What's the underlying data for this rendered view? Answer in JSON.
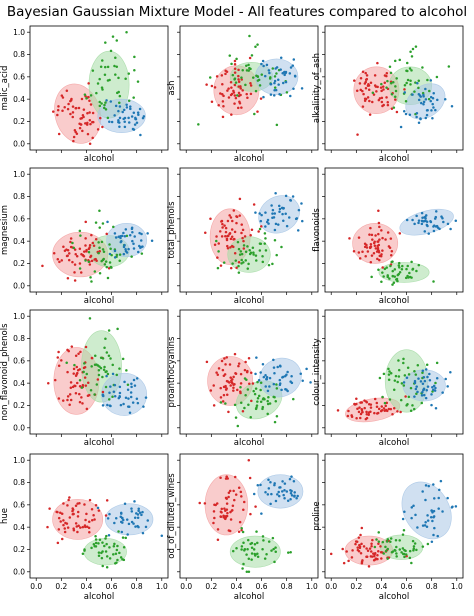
{
  "figure": {
    "title": "Bayesian Gaussian Mixture Model - All features compared to alcohol"
  },
  "colors": {
    "cluster_red": "#d62728",
    "cluster_green": "#2ca02c",
    "cluster_blue": "#1f77b4",
    "ellipse_red": "#f4a3a3",
    "ellipse_green": "#a6dca6",
    "ellipse_blue": "#a9c7e6"
  },
  "chart_data": [
    {
      "type": "scatter",
      "xlabel": "alcohol",
      "ylabel": "malic_acid",
      "xlim": [
        0,
        1
      ],
      "ylim": [
        0,
        1
      ],
      "xticks_labeled": false,
      "yticks_labeled": true,
      "ellipses": [
        {
          "cluster": "red",
          "cx": 0.33,
          "cy": 0.27,
          "rx": 0.18,
          "ry": 0.27,
          "angle": -15
        },
        {
          "cluster": "green",
          "cx": 0.58,
          "cy": 0.53,
          "rx": 0.16,
          "ry": 0.3,
          "angle": 0
        },
        {
          "cluster": "blue",
          "cx": 0.68,
          "cy": 0.25,
          "rx": 0.19,
          "ry": 0.15,
          "angle": 0
        }
      ],
      "clusters": {
        "red": {
          "n": 60,
          "mx": 0.34,
          "my": 0.27,
          "sx": 0.09,
          "sy": 0.13
        },
        "green": {
          "n": 45,
          "mx": 0.55,
          "my": 0.55,
          "sx": 0.1,
          "sy": 0.18
        },
        "blue": {
          "n": 40,
          "mx": 0.7,
          "my": 0.25,
          "sx": 0.09,
          "sy": 0.07
        }
      }
    },
    {
      "type": "scatter",
      "xlabel": "alcohol",
      "ylabel": "ash",
      "xlim": [
        0,
        1
      ],
      "ylim": [
        0,
        1
      ],
      "xticks_labeled": false,
      "yticks_labeled": false,
      "ellipses": [
        {
          "cluster": "red",
          "cx": 0.4,
          "cy": 0.48,
          "rx": 0.18,
          "ry": 0.22,
          "angle": 0
        },
        {
          "cluster": "green",
          "cx": 0.52,
          "cy": 0.6,
          "rx": 0.17,
          "ry": 0.13,
          "angle": 0
        },
        {
          "cluster": "blue",
          "cx": 0.72,
          "cy": 0.6,
          "rx": 0.17,
          "ry": 0.16,
          "angle": 0
        }
      ],
      "clusters": {
        "red": {
          "n": 60,
          "mx": 0.36,
          "my": 0.48,
          "sx": 0.09,
          "sy": 0.12
        },
        "green": {
          "n": 45,
          "mx": 0.52,
          "my": 0.55,
          "sx": 0.13,
          "sy": 0.14
        },
        "blue": {
          "n": 40,
          "mx": 0.72,
          "my": 0.6,
          "sx": 0.09,
          "sy": 0.08
        }
      }
    },
    {
      "type": "scatter",
      "xlabel": "alcohol",
      "ylabel": "alkalinity_of_ash",
      "xlim": [
        0,
        1
      ],
      "ylim": [
        0,
        1
      ],
      "xticks_labeled": false,
      "yticks_labeled": false,
      "ellipses": [
        {
          "cluster": "red",
          "cx": 0.36,
          "cy": 0.48,
          "rx": 0.18,
          "ry": 0.21,
          "angle": 0
        },
        {
          "cluster": "green",
          "cx": 0.63,
          "cy": 0.52,
          "rx": 0.17,
          "ry": 0.17,
          "angle": 0
        },
        {
          "cluster": "blue",
          "cx": 0.75,
          "cy": 0.38,
          "rx": 0.17,
          "ry": 0.14,
          "angle": -35
        }
      ],
      "clusters": {
        "red": {
          "n": 60,
          "mx": 0.36,
          "my": 0.5,
          "sx": 0.1,
          "sy": 0.12
        },
        "green": {
          "n": 45,
          "mx": 0.6,
          "my": 0.55,
          "sx": 0.11,
          "sy": 0.13
        },
        "blue": {
          "n": 40,
          "mx": 0.75,
          "my": 0.38,
          "sx": 0.09,
          "sy": 0.09
        }
      }
    },
    {
      "type": "scatter",
      "xlabel": "alcohol",
      "ylabel": "magnesium",
      "xlim": [
        0,
        1
      ],
      "ylim": [
        0,
        1
      ],
      "xticks_labeled": false,
      "yticks_labeled": true,
      "ellipses": [
        {
          "cluster": "red",
          "cx": 0.35,
          "cy": 0.28,
          "rx": 0.22,
          "ry": 0.2,
          "angle": 0
        },
        {
          "cluster": "green",
          "cx": 0.58,
          "cy": 0.31,
          "rx": 0.16,
          "ry": 0.14,
          "angle": 0
        },
        {
          "cluster": "blue",
          "cx": 0.72,
          "cy": 0.41,
          "rx": 0.16,
          "ry": 0.15,
          "angle": 0
        }
      ],
      "clusters": {
        "red": {
          "n": 60,
          "mx": 0.35,
          "my": 0.28,
          "sx": 0.11,
          "sy": 0.1
        },
        "green": {
          "n": 45,
          "mx": 0.55,
          "my": 0.32,
          "sx": 0.12,
          "sy": 0.12
        },
        "blue": {
          "n": 40,
          "mx": 0.72,
          "my": 0.42,
          "sx": 0.09,
          "sy": 0.08
        }
      }
    },
    {
      "type": "scatter",
      "xlabel": "alcohol",
      "ylabel": "total_phenols",
      "xlim": [
        0,
        1
      ],
      "ylim": [
        0,
        1
      ],
      "xticks_labeled": false,
      "yticks_labeled": false,
      "ellipses": [
        {
          "cluster": "red",
          "cx": 0.35,
          "cy": 0.44,
          "rx": 0.16,
          "ry": 0.25,
          "angle": 0
        },
        {
          "cluster": "green",
          "cx": 0.5,
          "cy": 0.28,
          "rx": 0.17,
          "ry": 0.16,
          "angle": 0
        },
        {
          "cluster": "blue",
          "cx": 0.74,
          "cy": 0.64,
          "rx": 0.17,
          "ry": 0.16,
          "angle": -30
        }
      ],
      "clusters": {
        "red": {
          "n": 60,
          "mx": 0.35,
          "my": 0.45,
          "sx": 0.09,
          "sy": 0.13
        },
        "green": {
          "n": 45,
          "mx": 0.5,
          "my": 0.28,
          "sx": 0.11,
          "sy": 0.1
        },
        "blue": {
          "n": 40,
          "mx": 0.74,
          "my": 0.64,
          "sx": 0.09,
          "sy": 0.09
        }
      }
    },
    {
      "type": "scatter",
      "xlabel": "alcohol",
      "ylabel": "flavonoids",
      "xlim": [
        0,
        1
      ],
      "ylim": [
        0,
        1
      ],
      "xticks_labeled": false,
      "yticks_labeled": false,
      "ellipses": [
        {
          "cluster": "red",
          "cx": 0.35,
          "cy": 0.38,
          "rx": 0.18,
          "ry": 0.18,
          "angle": 0
        },
        {
          "cluster": "green",
          "cx": 0.58,
          "cy": 0.12,
          "rx": 0.2,
          "ry": 0.09,
          "angle": 0
        },
        {
          "cluster": "blue",
          "cx": 0.76,
          "cy": 0.57,
          "rx": 0.22,
          "ry": 0.1,
          "angle": -15
        }
      ],
      "clusters": {
        "red": {
          "n": 60,
          "mx": 0.35,
          "my": 0.38,
          "sx": 0.09,
          "sy": 0.1
        },
        "green": {
          "n": 45,
          "mx": 0.57,
          "my": 0.12,
          "sx": 0.11,
          "sy": 0.05
        },
        "blue": {
          "n": 40,
          "mx": 0.76,
          "my": 0.57,
          "sx": 0.1,
          "sy": 0.05
        }
      }
    },
    {
      "type": "scatter",
      "xlabel": "alcohol",
      "ylabel": "non_flavonoid_phenols",
      "xlim": [
        0,
        1
      ],
      "ylim": [
        0,
        1
      ],
      "xticks_labeled": false,
      "yticks_labeled": true,
      "ellipses": [
        {
          "cluster": "red",
          "cx": 0.32,
          "cy": 0.42,
          "rx": 0.18,
          "ry": 0.3,
          "angle": 0
        },
        {
          "cluster": "green",
          "cx": 0.52,
          "cy": 0.55,
          "rx": 0.16,
          "ry": 0.32,
          "angle": 0
        },
        {
          "cluster": "blue",
          "cx": 0.7,
          "cy": 0.3,
          "rx": 0.18,
          "ry": 0.19,
          "angle": 0
        }
      ],
      "clusters": {
        "red": {
          "n": 60,
          "mx": 0.32,
          "my": 0.43,
          "sx": 0.09,
          "sy": 0.16
        },
        "green": {
          "n": 45,
          "mx": 0.52,
          "my": 0.55,
          "sx": 0.11,
          "sy": 0.18
        },
        "blue": {
          "n": 40,
          "mx": 0.7,
          "my": 0.3,
          "sx": 0.09,
          "sy": 0.09
        }
      }
    },
    {
      "type": "scatter",
      "xlabel": "alcohol",
      "ylabel": "proanthocyanins",
      "xlim": [
        0,
        1
      ],
      "ylim": [
        0,
        1
      ],
      "xticks_labeled": false,
      "yticks_labeled": false,
      "ellipses": [
        {
          "cluster": "red",
          "cx": 0.35,
          "cy": 0.42,
          "rx": 0.18,
          "ry": 0.22,
          "angle": 0
        },
        {
          "cluster": "green",
          "cx": 0.58,
          "cy": 0.25,
          "rx": 0.19,
          "ry": 0.16,
          "angle": -25
        },
        {
          "cluster": "blue",
          "cx": 0.75,
          "cy": 0.45,
          "rx": 0.17,
          "ry": 0.17,
          "angle": -25
        }
      ],
      "clusters": {
        "red": {
          "n": 60,
          "mx": 0.35,
          "my": 0.42,
          "sx": 0.09,
          "sy": 0.11
        },
        "green": {
          "n": 45,
          "mx": 0.57,
          "my": 0.25,
          "sx": 0.11,
          "sy": 0.1
        },
        "blue": {
          "n": 40,
          "mx": 0.74,
          "my": 0.46,
          "sx": 0.09,
          "sy": 0.09
        }
      }
    },
    {
      "type": "scatter",
      "xlabel": "alcohol",
      "ylabel": "colour_intensity",
      "xlim": [
        0,
        1
      ],
      "ylim": [
        0,
        1
      ],
      "xticks_labeled": false,
      "yticks_labeled": false,
      "ellipses": [
        {
          "cluster": "red",
          "cx": 0.33,
          "cy": 0.16,
          "rx": 0.22,
          "ry": 0.1,
          "angle": -10
        },
        {
          "cluster": "green",
          "cx": 0.6,
          "cy": 0.42,
          "rx": 0.17,
          "ry": 0.28,
          "angle": 0
        },
        {
          "cluster": "blue",
          "cx": 0.74,
          "cy": 0.38,
          "rx": 0.17,
          "ry": 0.14,
          "angle": 0
        }
      ],
      "clusters": {
        "red": {
          "n": 60,
          "mx": 0.33,
          "my": 0.16,
          "sx": 0.11,
          "sy": 0.05
        },
        "green": {
          "n": 45,
          "mx": 0.58,
          "my": 0.42,
          "sx": 0.11,
          "sy": 0.15
        },
        "blue": {
          "n": 40,
          "mx": 0.74,
          "my": 0.38,
          "sx": 0.09,
          "sy": 0.08
        }
      }
    },
    {
      "type": "scatter",
      "xlabel": "alcohol",
      "ylabel": "hue",
      "xlim": [
        0,
        1
      ],
      "ylim": [
        0,
        1
      ],
      "xticks_labeled": true,
      "yticks_labeled": true,
      "ellipses": [
        {
          "cluster": "red",
          "cx": 0.33,
          "cy": 0.47,
          "rx": 0.2,
          "ry": 0.18,
          "angle": 0
        },
        {
          "cluster": "green",
          "cx": 0.55,
          "cy": 0.18,
          "rx": 0.17,
          "ry": 0.12,
          "angle": 0
        },
        {
          "cluster": "blue",
          "cx": 0.74,
          "cy": 0.47,
          "rx": 0.19,
          "ry": 0.14,
          "angle": 0
        }
      ],
      "clusters": {
        "red": {
          "n": 60,
          "mx": 0.33,
          "my": 0.47,
          "sx": 0.1,
          "sy": 0.09
        },
        "green": {
          "n": 45,
          "mx": 0.55,
          "my": 0.18,
          "sx": 0.1,
          "sy": 0.07
        },
        "blue": {
          "n": 40,
          "mx": 0.74,
          "my": 0.47,
          "sx": 0.1,
          "sy": 0.07
        }
      }
    },
    {
      "type": "scatter",
      "xlabel": "alcohol",
      "ylabel": "od_of_diluted_wines",
      "xlim": [
        0,
        1
      ],
      "ylim": [
        0,
        1
      ],
      "xticks_labeled": true,
      "yticks_labeled": false,
      "ellipses": [
        {
          "cluster": "red",
          "cx": 0.32,
          "cy": 0.6,
          "rx": 0.17,
          "ry": 0.27,
          "angle": 0
        },
        {
          "cluster": "green",
          "cx": 0.55,
          "cy": 0.18,
          "rx": 0.2,
          "ry": 0.14,
          "angle": 0
        },
        {
          "cluster": "blue",
          "cx": 0.75,
          "cy": 0.72,
          "rx": 0.18,
          "ry": 0.15,
          "angle": 0
        }
      ],
      "clusters": {
        "red": {
          "n": 60,
          "mx": 0.32,
          "my": 0.6,
          "sx": 0.09,
          "sy": 0.14
        },
        "green": {
          "n": 45,
          "mx": 0.55,
          "my": 0.18,
          "sx": 0.11,
          "sy": 0.08
        },
        "blue": {
          "n": 40,
          "mx": 0.75,
          "my": 0.72,
          "sx": 0.09,
          "sy": 0.08
        }
      }
    },
    {
      "type": "scatter",
      "xlabel": "alcohol",
      "ylabel": "proline",
      "xlim": [
        0,
        1
      ],
      "ylim": [
        0,
        1
      ],
      "xticks_labeled": true,
      "yticks_labeled": false,
      "ellipses": [
        {
          "cluster": "red",
          "cx": 0.3,
          "cy": 0.19,
          "rx": 0.19,
          "ry": 0.13,
          "angle": 0
        },
        {
          "cluster": "green",
          "cx": 0.56,
          "cy": 0.22,
          "rx": 0.17,
          "ry": 0.11,
          "angle": 0
        },
        {
          "cluster": "blue",
          "cx": 0.76,
          "cy": 0.55,
          "rx": 0.18,
          "ry": 0.27,
          "angle": -30
        }
      ],
      "clusters": {
        "red": {
          "n": 60,
          "mx": 0.3,
          "my": 0.19,
          "sx": 0.1,
          "sy": 0.07
        },
        "green": {
          "n": 45,
          "mx": 0.55,
          "my": 0.22,
          "sx": 0.11,
          "sy": 0.06
        },
        "blue": {
          "n": 40,
          "mx": 0.76,
          "my": 0.56,
          "sx": 0.1,
          "sy": 0.14
        }
      }
    }
  ],
  "ticks": [
    "0.0",
    "0.2",
    "0.4",
    "0.6",
    "0.8",
    "1.0"
  ]
}
